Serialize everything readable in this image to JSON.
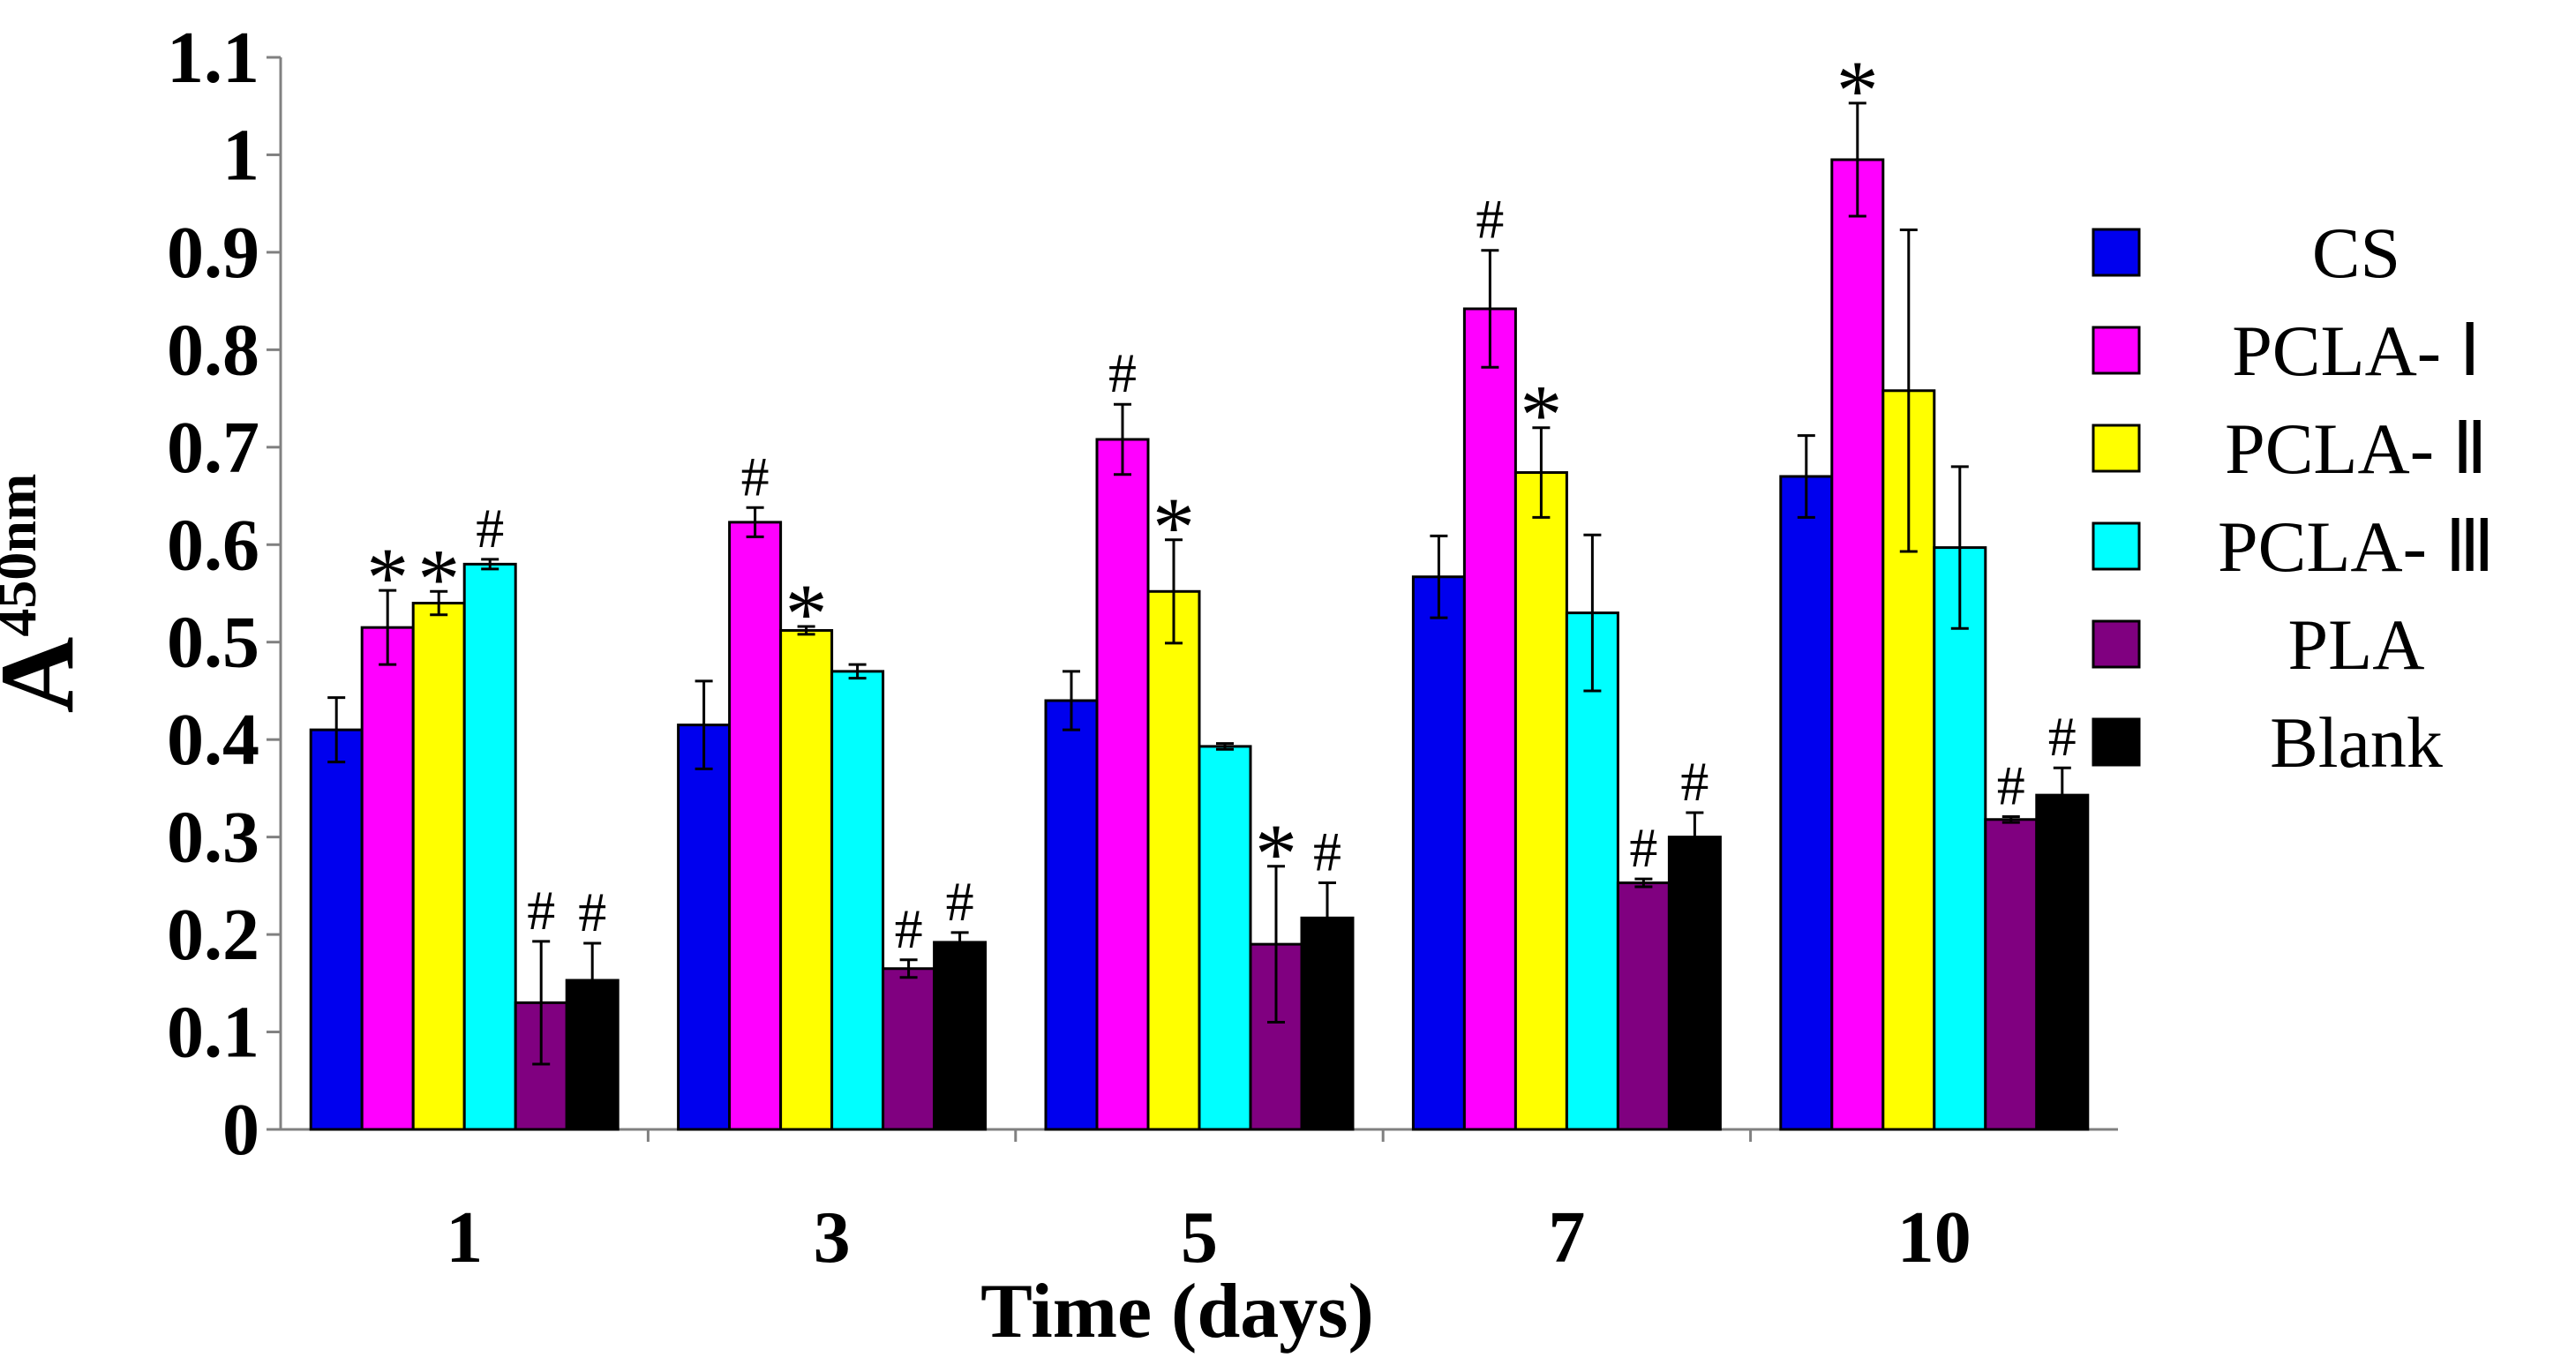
{
  "chart_data": {
    "type": "bar",
    "title": "",
    "xlabel": "Time (days)",
    "ylabel_main": "A",
    "ylabel_sub": "450nm",
    "ylim": [
      0,
      1.1
    ],
    "yticks": [
      "0",
      "0.1",
      "0.2",
      "0.3",
      "0.4",
      "0.5",
      "0.6",
      "0.7",
      "0.8",
      "0.9",
      "1",
      "1.1"
    ],
    "categories": [
      "1",
      "3",
      "5",
      "7",
      "10"
    ],
    "legend_position": "right",
    "series": [
      {
        "name": "CS",
        "color": "#0000EE",
        "values": [
          0.41,
          0.415,
          0.44,
          0.567,
          0.67
        ],
        "errors": [
          0.033,
          0.045,
          0.03,
          0.042,
          0.042
        ],
        "marks": [
          "",
          "",
          "",
          "",
          ""
        ]
      },
      {
        "name": "PCLA-  Ⅰ",
        "color": "#FF00FF",
        "values": [
          0.515,
          0.623,
          0.708,
          0.842,
          0.995
        ],
        "errors": [
          0.038,
          0.015,
          0.036,
          0.06,
          0.058
        ],
        "marks": [
          "*",
          "#",
          "#",
          "#",
          "*"
        ]
      },
      {
        "name": "PCLA-  Ⅱ",
        "color": "#FFFF00",
        "values": [
          0.54,
          0.512,
          0.552,
          0.674,
          0.758
        ],
        "errors": [
          0.012,
          0.004,
          0.053,
          0.046,
          0.165
        ],
        "marks": [
          "*",
          "*",
          "*",
          "*",
          ""
        ]
      },
      {
        "name": "PCLA- Ⅲ",
        "color": "#00FFFF",
        "values": [
          0.58,
          0.47,
          0.393,
          0.53,
          0.597
        ],
        "errors": [
          0.005,
          0.007,
          0.003,
          0.08,
          0.083
        ],
        "marks": [
          "#",
          "",
          "",
          "",
          ""
        ]
      },
      {
        "name": "PLA",
        "color": "#800080",
        "values": [
          0.13,
          0.165,
          0.19,
          0.253,
          0.318
        ],
        "errors": [
          0.063,
          0.009,
          0.08,
          0.004,
          0.003
        ],
        "marks": [
          "#",
          "#",
          "*",
          "#",
          "#"
        ]
      },
      {
        "name": "Blank",
        "color": "#000000",
        "values": [
          0.153,
          0.192,
          0.217,
          0.3,
          0.343
        ],
        "errors": [
          0.038,
          0.01,
          0.036,
          0.025,
          0.028
        ],
        "marks": [
          "#",
          "#",
          "#",
          "#",
          "#"
        ]
      }
    ]
  }
}
